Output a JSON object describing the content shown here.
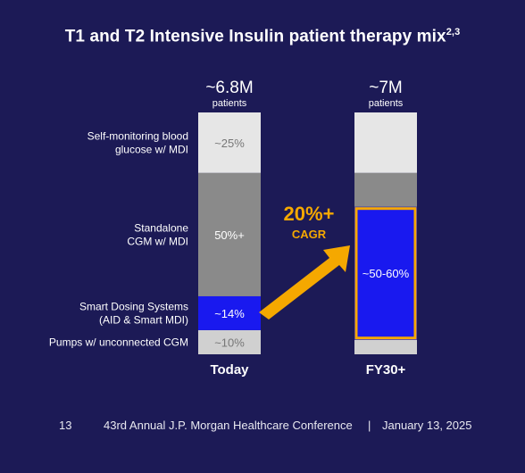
{
  "title": {
    "text": "T1 and T2 Intensive Insulin patient therapy mix",
    "sup": "2,3"
  },
  "chart_data": {
    "type": "bar",
    "stacked": true,
    "categories": [
      "Today",
      "FY30+"
    ],
    "totals": [
      "~6.8M",
      "~7M"
    ],
    "totals_unit": "patients",
    "series": [
      {
        "name": "Pumps w/ unconnected CGM",
        "values": [
          10,
          6
        ],
        "labels": [
          "~10%",
          ""
        ],
        "color": "#d0d0d0"
      },
      {
        "name": "Smart Dosing Systems\n(AID & Smart MDI)",
        "values": [
          14,
          55
        ],
        "labels": [
          "~14%",
          "~50-60%"
        ],
        "color": "#1919ef"
      },
      {
        "name": "Standalone\nCGM w/ MDI",
        "values": [
          51,
          14
        ],
        "labels": [
          "50%+",
          ""
        ],
        "color": "#8a8a8a"
      },
      {
        "name": "Self-monitoring blood\nglucose w/ MDI",
        "values": [
          25,
          25
        ],
        "labels": [
          "~25%",
          ""
        ],
        "color": "#e6e6e6"
      }
    ],
    "annotation": {
      "line1": "20%+",
      "line2": "CAGR",
      "color": "#f5a800"
    },
    "highlight_color": "#f5a800",
    "ylim": [
      0,
      100
    ]
  },
  "footer": {
    "page": "13",
    "conference": "43rd Annual J.P. Morgan Healthcare Conference",
    "separator": "|",
    "date": "January 13, 2025"
  }
}
